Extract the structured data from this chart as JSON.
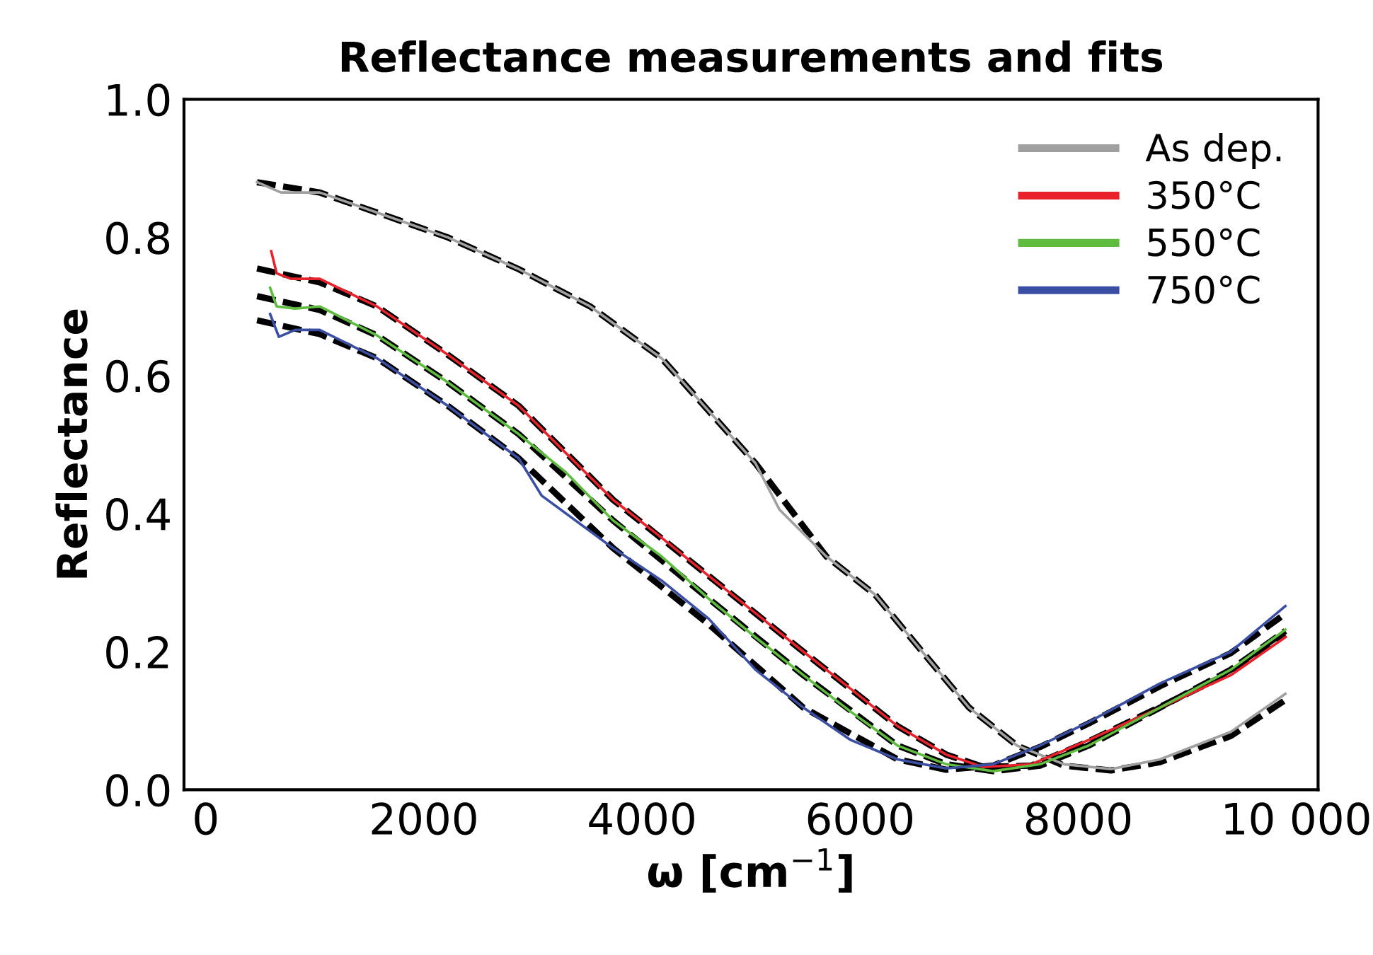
{
  "chart_data": {
    "type": "line",
    "title": "Reflectance measurements and fits",
    "xlabel": "ω [cm$^{−1}$]",
    "ylabel": "Reflectance",
    "xlim": [
      -200,
      10200
    ],
    "ylim": [
      0,
      1
    ],
    "xticks": [
      0,
      2000,
      4000,
      6000,
      8000,
      {
        "value": 10000,
        "label": "10 000"
      }
    ],
    "yticks": [
      {
        "value": 0,
        "label": "0.0"
      },
      {
        "value": 0.2,
        "label": "0.2"
      },
      {
        "value": 0.4,
        "label": "0.4"
      },
      {
        "value": 0.6,
        "label": "0.6"
      },
      {
        "value": 0.8,
        "label": "0.8"
      },
      {
        "value": 1,
        "label": "1.0"
      }
    ],
    "legend": "top right",
    "grid": false,
    "marker": "none",
    "series": [
      {
        "name": "As dep.",
        "color": "#a0a0a0",
        "line_style": "solid",
        "x": [
          470,
          690,
          1045,
          1570,
          2220,
          2870,
          3525,
          4180,
          4610,
          5040,
          5260,
          5690,
          6135,
          6570,
          7000,
          7440,
          7870,
          8300,
          8750,
          9400,
          9900
        ],
        "values": [
          0.88,
          0.865,
          0.865,
          0.836,
          0.8,
          0.754,
          0.7,
          0.625,
          0.549,
          0.473,
          0.406,
          0.338,
          0.283,
          0.2,
          0.119,
          0.064,
          0.037,
          0.03,
          0.044,
          0.084,
          0.139
        ]
      },
      {
        "name": "350°C",
        "color": "#e8212b",
        "line_style": "solid",
        "x": [
          600,
          650,
          780,
          1045,
          1570,
          2220,
          2870,
          3300,
          3735,
          4180,
          4610,
          5040,
          5480,
          5915,
          6345,
          6790,
          7130,
          7570,
          8095,
          8750,
          9400,
          9900
        ],
        "values": [
          0.78,
          0.748,
          0.74,
          0.74,
          0.7,
          0.63,
          0.556,
          0.488,
          0.42,
          0.365,
          0.31,
          0.256,
          0.2,
          0.146,
          0.092,
          0.051,
          0.033,
          0.037,
          0.072,
          0.119,
          0.166,
          0.221
        ]
      },
      {
        "name": "550°C",
        "color": "#5ebd3e",
        "line_style": "solid",
        "x": [
          590,
          650,
          820,
          1045,
          1570,
          2220,
          2870,
          3300,
          3735,
          4180,
          4610,
          5040,
          5480,
          5915,
          6345,
          6790,
          7220,
          7650,
          8095,
          8750,
          9400,
          9900
        ],
        "values": [
          0.727,
          0.7,
          0.697,
          0.7,
          0.658,
          0.59,
          0.515,
          0.46,
          0.39,
          0.338,
          0.277,
          0.221,
          0.166,
          0.113,
          0.064,
          0.037,
          0.027,
          0.037,
          0.064,
          0.119,
          0.174,
          0.232
        ]
      },
      {
        "name": "750°C",
        "color": "#3a4ea3",
        "line_style": "solid",
        "x": [
          590,
          670,
          820,
          1045,
          1570,
          2220,
          2870,
          3080,
          3735,
          4180,
          4610,
          5040,
          5480,
          5915,
          6345,
          6790,
          7220,
          7650,
          8095,
          8750,
          9400,
          9900
        ],
        "values": [
          0.689,
          0.656,
          0.666,
          0.666,
          0.625,
          0.556,
          0.48,
          0.426,
          0.35,
          0.303,
          0.248,
          0.174,
          0.119,
          0.072,
          0.044,
          0.031,
          0.037,
          0.064,
          0.098,
          0.154,
          0.2,
          0.266
        ]
      },
      {
        "color": "#000000",
        "line_style": "dashed",
        "x": [
          470,
          1045,
          1570,
          2220,
          2870,
          3525,
          4180,
          4610,
          5040,
          5690,
          6135,
          6570,
          7000,
          7440,
          7870,
          8300,
          8750,
          9400,
          9900
        ],
        "values": [
          0.88,
          0.865,
          0.836,
          0.8,
          0.754,
          0.7,
          0.625,
          0.549,
          0.473,
          0.338,
          0.283,
          0.2,
          0.119,
          0.064,
          0.035,
          0.028,
          0.04,
          0.078,
          0.13
        ]
      },
      {
        "color": "#000000",
        "line_style": "dashed",
        "x": [
          470,
          1045,
          1570,
          2220,
          2870,
          3735,
          4610,
          5480,
          6345,
          6790,
          7130,
          7570,
          8095,
          8750,
          9400,
          9900
        ],
        "values": [
          0.755,
          0.735,
          0.7,
          0.63,
          0.556,
          0.42,
          0.31,
          0.2,
          0.092,
          0.051,
          0.033,
          0.035,
          0.07,
          0.12,
          0.17,
          0.225
        ]
      },
      {
        "color": "#000000",
        "line_style": "dashed",
        "x": [
          470,
          1045,
          1570,
          2220,
          2870,
          3735,
          4610,
          5480,
          6345,
          6790,
          7220,
          7650,
          8095,
          8750,
          9400,
          9900
        ],
        "values": [
          0.715,
          0.695,
          0.658,
          0.59,
          0.515,
          0.39,
          0.277,
          0.166,
          0.064,
          0.037,
          0.027,
          0.035,
          0.064,
          0.119,
          0.174,
          0.23
        ]
      },
      {
        "color": "#000000",
        "line_style": "dashed",
        "x": [
          470,
          1045,
          1570,
          2220,
          2870,
          3735,
          4610,
          5480,
          6345,
          6790,
          7220,
          7650,
          8095,
          8750,
          9400,
          9900
        ],
        "values": [
          0.68,
          0.66,
          0.625,
          0.556,
          0.48,
          0.35,
          0.24,
          0.119,
          0.044,
          0.029,
          0.035,
          0.062,
          0.096,
          0.15,
          0.198,
          0.255
        ]
      }
    ]
  }
}
